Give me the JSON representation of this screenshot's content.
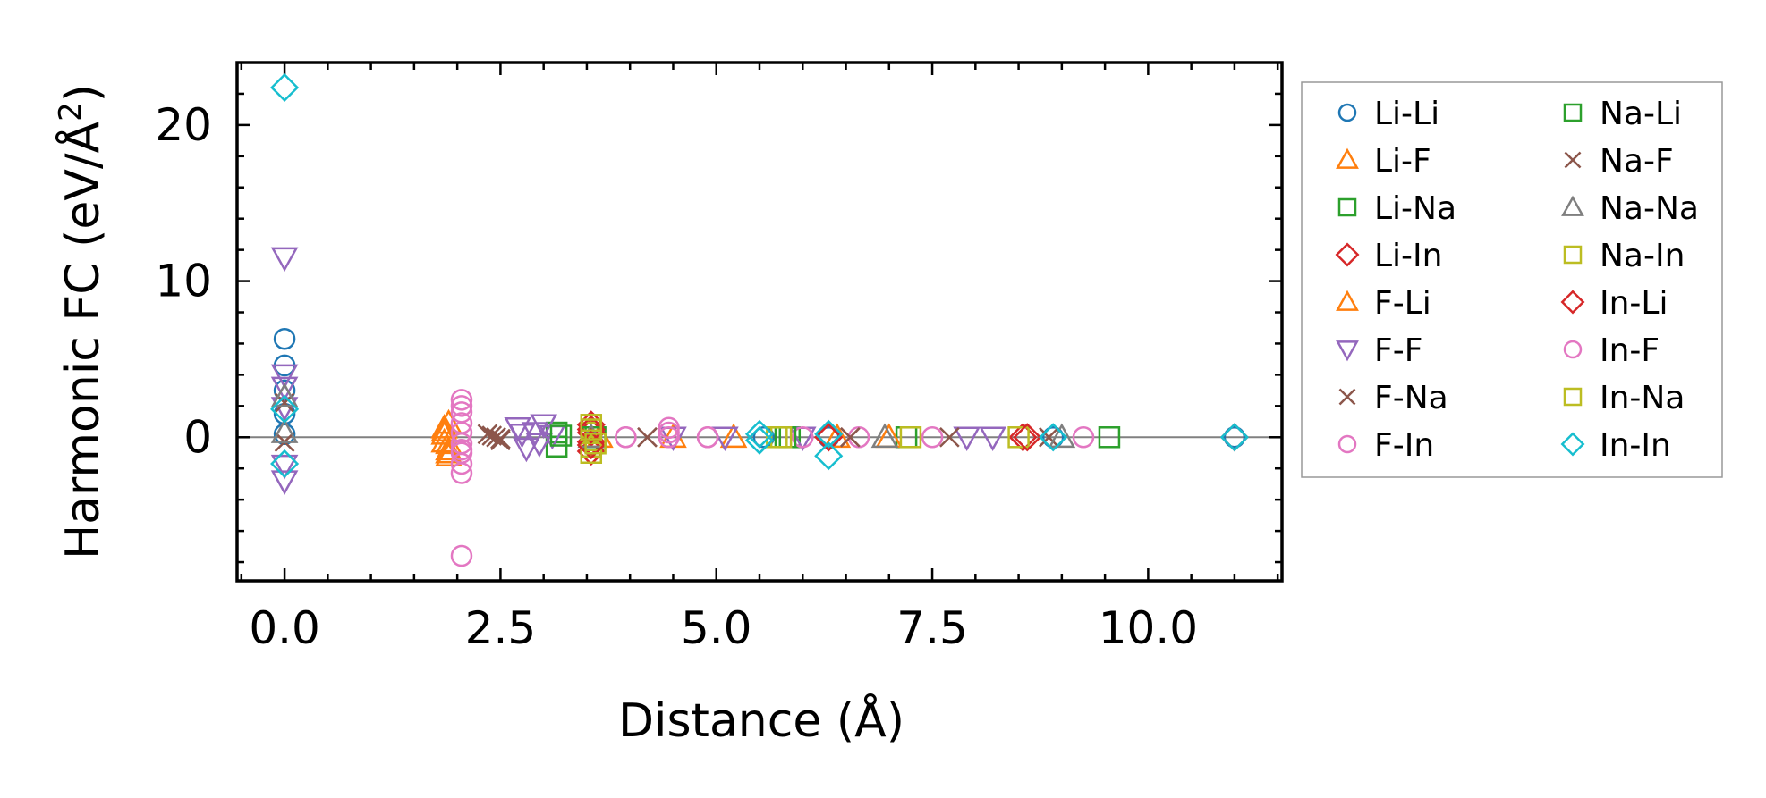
{
  "chart_data": {
    "type": "scatter",
    "title": "",
    "xlabel": "Distance (Å)",
    "ylabel_main": "Harmonic FC (eV/Å",
    "ylabel_sup": "2",
    "ylabel_end": ")",
    "xlim": [
      -0.55,
      11.55
    ],
    "ylim": [
      -9.2,
      24.0
    ],
    "xticks": [
      0.0,
      2.5,
      5.0,
      7.5,
      10.0
    ],
    "xtick_labels": [
      "0.0",
      "2.5",
      "5.0",
      "7.5",
      "10.0"
    ],
    "yticks": [
      0,
      10,
      20
    ],
    "ytick_labels": [
      "0",
      "10",
      "20"
    ],
    "legend_position": "outside-right",
    "series": [
      {
        "name": "Li-Li",
        "marker": "circle",
        "color": "#1f77b4",
        "x": [
          0,
          0,
          0,
          0,
          0,
          5.55,
          6.3,
          8.9,
          11.0
        ],
        "y": [
          6.3,
          4.6,
          3.0,
          1.5,
          0.2,
          0,
          0,
          0,
          0
        ]
      },
      {
        "name": "Li-F",
        "marker": "triangle-up",
        "color": "#ff7f0e",
        "x": [
          1.85,
          1.85,
          1.85,
          1.9,
          1.9,
          1.9,
          3.65,
          5.2,
          6.4
        ],
        "y": [
          0.6,
          0.2,
          -0.3,
          -0.8,
          -1.2,
          0.9,
          0,
          0,
          0
        ]
      },
      {
        "name": "Li-Na",
        "marker": "square",
        "color": "#2ca02c",
        "x": [
          3.15,
          3.15,
          3.6,
          5.85,
          7.2,
          9.55
        ],
        "y": [
          0.3,
          -0.6,
          0,
          0,
          0,
          0
        ]
      },
      {
        "name": "Li-In",
        "marker": "diamond",
        "color": "#d62728",
        "x": [
          3.55,
          3.55,
          3.55,
          3.55,
          6.3,
          8.55,
          11.0
        ],
        "y": [
          0.8,
          0.3,
          -0.3,
          -0.9,
          0,
          0,
          0
        ]
      },
      {
        "name": "F-Li",
        "marker": "triangle-up",
        "color": "#ff7f0e",
        "x": [
          1.85,
          1.9,
          1.9,
          4.5,
          7.0
        ],
        "y": [
          0.4,
          -0.4,
          -1.0,
          0,
          0
        ]
      },
      {
        "name": "F-F",
        "marker": "triangle-down",
        "color": "#9467bd",
        "x": [
          0,
          0,
          0,
          0,
          0,
          0,
          2.7,
          2.8,
          2.9,
          3.0,
          3.1,
          2.75,
          2.95,
          4.5,
          5.1,
          6.0,
          7.9,
          8.2
        ],
        "y": [
          11.5,
          4.0,
          3.2,
          1.9,
          -1.8,
          -2.8,
          0.6,
          -0.7,
          0.3,
          0.8,
          0.1,
          0.2,
          -0.4,
          0,
          0,
          0,
          0,
          0
        ]
      },
      {
        "name": "F-Na",
        "marker": "x",
        "color": "#8c564b",
        "x": [
          0,
          0,
          2.35,
          2.5,
          2.45,
          4.2,
          6.55,
          7.7,
          8.85
        ],
        "y": [
          2.2,
          -0.3,
          0.2,
          -0.2,
          0,
          0,
          0,
          0,
          0
        ]
      },
      {
        "name": "F-In",
        "marker": "circle",
        "color": "#e377c2",
        "x": [
          2.05,
          2.05,
          2.05,
          2.05,
          2.05,
          2.05,
          2.05,
          2.05,
          3.95,
          4.45,
          4.45,
          4.9,
          6.0,
          6.65,
          7.5,
          9.25
        ],
        "y": [
          2.4,
          1.6,
          0.9,
          0.3,
          -0.4,
          -1.0,
          -1.7,
          -2.3,
          0,
          0.6,
          0,
          0,
          0,
          0,
          0,
          0
        ]
      },
      {
        "name": "Na-Li",
        "marker": "square",
        "color": "#2ca02c",
        "x": [
          3.2,
          3.55,
          5.8
        ],
        "y": [
          0.1,
          0,
          0
        ]
      },
      {
        "name": "Na-F",
        "marker": "x",
        "color": "#8c564b",
        "x": [
          2.4,
          2.5,
          4.2,
          6.55
        ],
        "y": [
          0.1,
          -0.1,
          0,
          0
        ]
      },
      {
        "name": "Na-Na",
        "marker": "triangle-up",
        "color": "#7f7f7f",
        "x": [
          0,
          0,
          3.55,
          6.95,
          9.0
        ],
        "y": [
          2.6,
          0.3,
          0,
          0,
          0
        ]
      },
      {
        "name": "Na-In",
        "marker": "square",
        "color": "#bcbd22",
        "x": [
          3.55,
          3.55,
          3.55,
          3.55,
          3.55,
          5.7,
          7.25,
          8.5
        ],
        "y": [
          0.8,
          0.3,
          -0.2,
          -0.6,
          -1.0,
          0,
          0,
          0
        ]
      },
      {
        "name": "In-Li",
        "marker": "diamond",
        "color": "#d62728",
        "x": [
          3.55,
          3.55,
          6.3,
          8.6
        ],
        "y": [
          0.5,
          -0.5,
          0,
          0
        ]
      },
      {
        "name": "In-F",
        "marker": "circle",
        "color": "#e377c2",
        "x": [
          2.05,
          2.05,
          2.05,
          3.95,
          4.45,
          4.9
        ],
        "y": [
          -7.6,
          2.0,
          -0.8,
          0,
          0.3,
          0
        ]
      },
      {
        "name": "In-Na",
        "marker": "square",
        "color": "#bcbd22",
        "x": [
          3.55,
          3.6,
          5.75
        ],
        "y": [
          0.5,
          -0.4,
          0
        ]
      },
      {
        "name": "In-In",
        "marker": "diamond",
        "color": "#17becf",
        "x": [
          0,
          0,
          0,
          5.5,
          5.5,
          6.3,
          6.3,
          8.9,
          11.0
        ],
        "y": [
          22.4,
          1.8,
          -1.7,
          0.2,
          -0.2,
          0.2,
          -1.2,
          0,
          0
        ]
      }
    ]
  }
}
